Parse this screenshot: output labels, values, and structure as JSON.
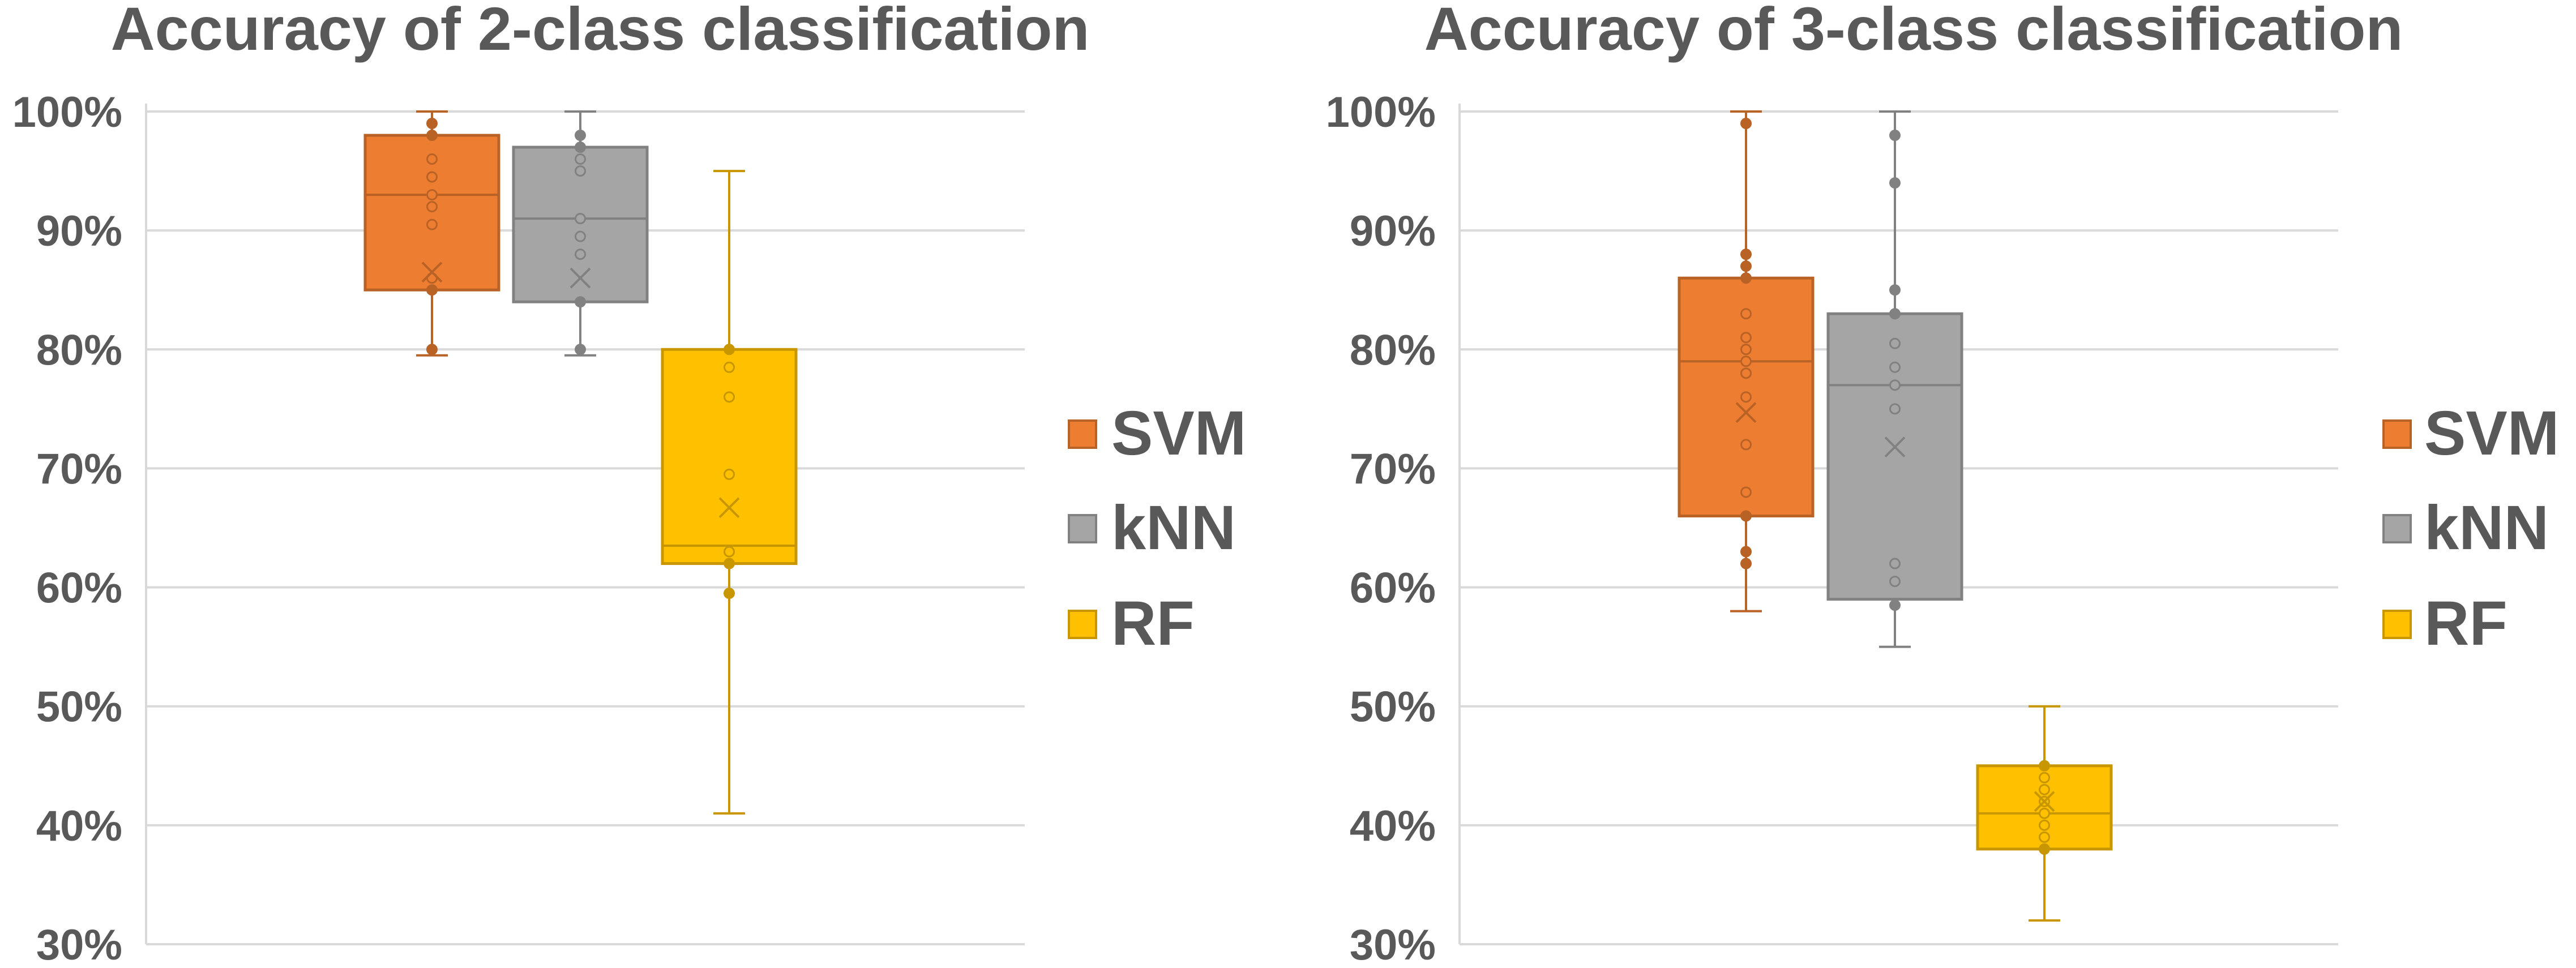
{
  "chart_data": [
    {
      "type": "box",
      "title": "Accuracy of 2-class classification",
      "xlabel": "",
      "ylabel": "",
      "ylim": [
        30,
        100
      ],
      "y_ticks": [
        30,
        40,
        50,
        60,
        70,
        80,
        90,
        100
      ],
      "y_tick_labels": [
        "30%",
        "40%",
        "50%",
        "60%",
        "70%",
        "80%",
        "90%",
        "100%"
      ],
      "grid": true,
      "legend_position": "right",
      "series": [
        {
          "name": "SVM",
          "color": "#ED7D31",
          "min": 79.5,
          "q1": 85,
          "median": 93,
          "q3": 98,
          "max": 100,
          "mean": 86.5,
          "points": [
            80,
            85,
            86,
            90.5,
            92,
            93,
            94.5,
            96,
            98,
            99
          ]
        },
        {
          "name": "kNN",
          "color": "#A5A5A5",
          "min": 79.5,
          "q1": 84,
          "median": 91,
          "q3": 97,
          "max": 100,
          "mean": 86,
          "points": [
            80,
            84,
            88,
            89.5,
            91,
            95,
            96,
            97,
            98
          ]
        },
        {
          "name": "RF",
          "color": "#FFC000",
          "min": 41,
          "q1": 62,
          "median": 63.5,
          "q3": 80,
          "max": 95,
          "mean": 66.7,
          "points": [
            59.5,
            62,
            63,
            69.5,
            76,
            78.5,
            80
          ]
        }
      ]
    },
    {
      "type": "box",
      "title": "Accuracy of 3-class classification",
      "xlabel": "",
      "ylabel": "",
      "ylim": [
        30,
        100
      ],
      "y_ticks": [
        30,
        40,
        50,
        60,
        70,
        80,
        90,
        100
      ],
      "y_tick_labels": [
        "30%",
        "40%",
        "50%",
        "60%",
        "70%",
        "80%",
        "90%",
        "100%"
      ],
      "grid": true,
      "legend_position": "right",
      "series": [
        {
          "name": "SVM",
          "color": "#ED7D31",
          "min": 58,
          "q1": 66,
          "median": 79,
          "q3": 86,
          "max": 100,
          "mean": 74.7,
          "points": [
            62,
            63,
            66,
            68,
            72,
            76,
            78,
            79,
            80,
            81,
            83,
            86,
            87,
            88,
            99
          ]
        },
        {
          "name": "kNN",
          "color": "#A5A5A5",
          "min": 55,
          "q1": 59,
          "median": 77,
          "q3": 83,
          "max": 100,
          "mean": 71.8,
          "points": [
            58.5,
            60.5,
            62,
            75,
            77,
            78.5,
            80.5,
            83,
            85,
            94,
            98
          ]
        },
        {
          "name": "RF",
          "color": "#FFC000",
          "min": 32,
          "q1": 38,
          "median": 41,
          "q3": 45,
          "max": 50,
          "mean": 42,
          "points": [
            38,
            39,
            40,
            41,
            42,
            43,
            44,
            45
          ]
        }
      ]
    }
  ]
}
